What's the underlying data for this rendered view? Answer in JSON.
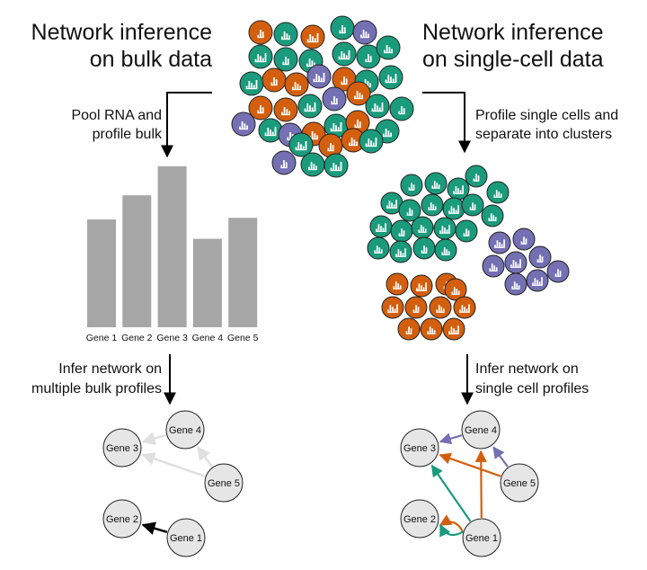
{
  "titles": {
    "bulk_line1": "Network inference",
    "bulk_line2": "on bulk data",
    "sc_line1": "Network inference",
    "sc_line2": "on single-cell data"
  },
  "steps": {
    "bulk_profile_line1": "Pool RNA and",
    "bulk_profile_line2": "profile bulk",
    "sc_profile_line1": "Profile single cells and",
    "sc_profile_line2": "separate into clusters",
    "bulk_infer_line1": "Infer network on",
    "bulk_infer_line2": "multiple bulk profiles",
    "sc_infer_line1": "Infer network on",
    "sc_infer_line2": "single cell profiles"
  },
  "colors": {
    "green": "#1a9b7c",
    "orange": "#d35f0e",
    "purple": "#7470b3",
    "bar_gray": "#a6a6a6",
    "node_fill": "#e6e6e6",
    "edge_light": "#e0e0e0",
    "edge_dark": "#000000"
  },
  "chart_data": {
    "type": "bar",
    "categories": [
      "Gene 1",
      "Gene 2",
      "Gene 3",
      "Gene 4",
      "Gene 5"
    ],
    "values": [
      0.67,
      0.82,
      1.0,
      0.55,
      0.68
    ],
    "ylim": [
      0,
      1
    ]
  },
  "bulk_network": {
    "nodes": [
      {
        "id": "g4",
        "label": "Gene 4"
      },
      {
        "id": "g3",
        "label": "Gene 3"
      },
      {
        "id": "g5",
        "label": "Gene 5"
      },
      {
        "id": "g2",
        "label": "Gene 2"
      },
      {
        "id": "g1",
        "label": "Gene 1"
      }
    ],
    "edges": [
      {
        "from": "g4",
        "to": "g3",
        "color": "light"
      },
      {
        "from": "g5",
        "to": "g3",
        "color": "light"
      },
      {
        "from": "g5",
        "to": "g4",
        "color": "light"
      },
      {
        "from": "g1",
        "to": "g2",
        "color": "dark"
      }
    ]
  },
  "sc_network": {
    "nodes": [
      {
        "id": "g4",
        "label": "Gene 4"
      },
      {
        "id": "g3",
        "label": "Gene 3"
      },
      {
        "id": "g5",
        "label": "Gene 5"
      },
      {
        "id": "g2",
        "label": "Gene 2"
      },
      {
        "id": "g1",
        "label": "Gene 1"
      }
    ],
    "edges": [
      {
        "from": "g4",
        "to": "g3",
        "color": "purple"
      },
      {
        "from": "g5",
        "to": "g4",
        "color": "purple"
      },
      {
        "from": "g5",
        "to": "g3",
        "color": "orange"
      },
      {
        "from": "g1",
        "to": "g4",
        "color": "orange"
      },
      {
        "from": "g1",
        "to": "g2",
        "color": "orange"
      },
      {
        "from": "g1",
        "to": "g3",
        "color": "green"
      },
      {
        "from": "g1",
        "to": "g2",
        "color": "green"
      }
    ]
  }
}
